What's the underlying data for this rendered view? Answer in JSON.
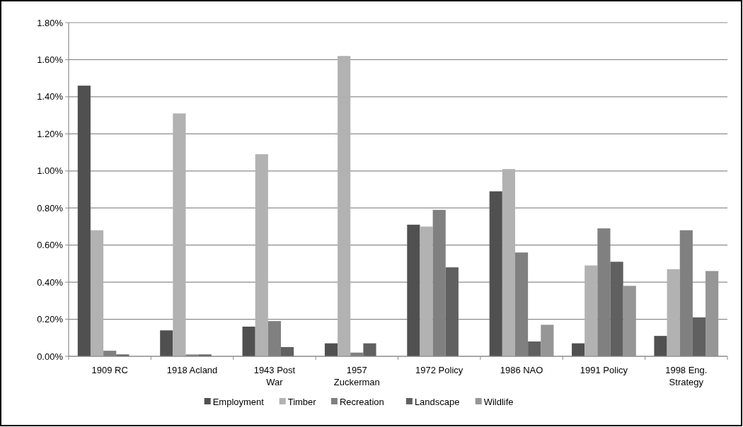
{
  "chart_data": {
    "type": "bar",
    "categories": [
      "1909 RC",
      "1918 Acland",
      "1943 Post War",
      "1957 Zuckerman",
      "1972 Policy",
      "1986 NAO",
      "1991 Policy",
      "1998 Eng. Strategy"
    ],
    "series": [
      {
        "name": "Employment",
        "color": "#505050",
        "values": [
          1.46,
          0.14,
          0.16,
          0.07,
          0.71,
          0.89,
          0.07,
          0.11
        ]
      },
      {
        "name": "Timber",
        "color": "#b2b2b2",
        "values": [
          0.68,
          1.31,
          1.09,
          1.62,
          0.7,
          1.01,
          0.49,
          0.47
        ]
      },
      {
        "name": "Recreation",
        "color": "#808080",
        "values": [
          0.03,
          0.01,
          0.19,
          0.02,
          0.79,
          0.56,
          0.69,
          0.68
        ]
      },
      {
        "name": "Landscape",
        "color": "#606060",
        "values": [
          0.01,
          0.01,
          0.05,
          0.07,
          0.48,
          0.08,
          0.51,
          0.21
        ]
      },
      {
        "name": "Wildlife",
        "color": "#969696",
        "values": [
          0,
          0,
          0,
          0,
          0,
          0.17,
          0.38,
          0.46
        ]
      }
    ],
    "ylim": [
      0,
      1.8
    ],
    "yticks": [
      {
        "value": 0,
        "label": "0.00%"
      },
      {
        "value": 0.2,
        "label": "0.20%"
      },
      {
        "value": 0.4,
        "label": "0.40%"
      },
      {
        "value": 0.6,
        "label": "0.60%"
      },
      {
        "value": 0.8,
        "label": "0.80%"
      },
      {
        "value": 1.0,
        "label": "1.00%"
      },
      {
        "value": 1.2,
        "label": "1.20%"
      },
      {
        "value": 1.4,
        "label": "1.40%"
      },
      {
        "value": 1.6,
        "label": "1.60%"
      },
      {
        "value": 1.8,
        "label": "1.80%"
      }
    ],
    "grid": "y",
    "legend": "bottom"
  }
}
